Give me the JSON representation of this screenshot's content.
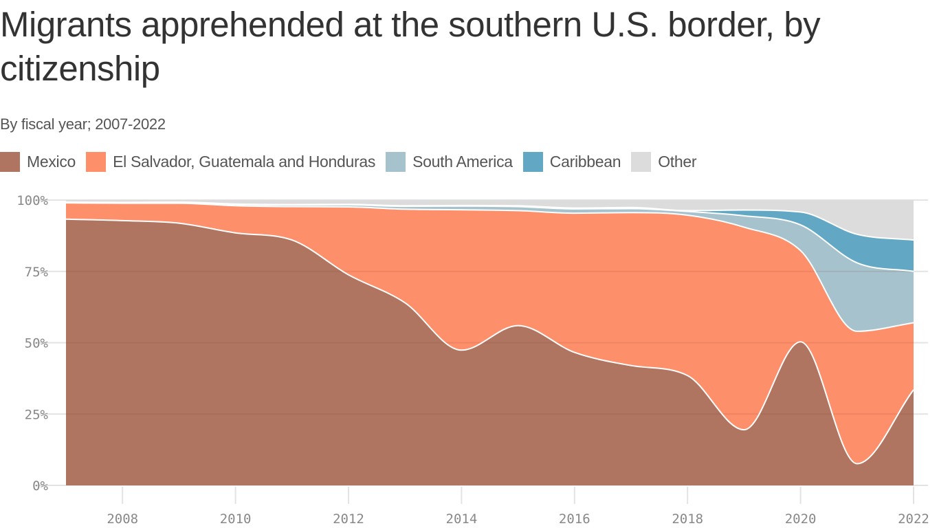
{
  "title": "Migrants apprehended at the southern U.S. border, by citizenship",
  "subtitle": "By fiscal year; 2007-2022",
  "legend": [
    {
      "label": "Mexico",
      "color": "#b07561"
    },
    {
      "label": "El Salvador, Guatemala and Honduras",
      "color": "#fe8f6b"
    },
    {
      "label": "South America",
      "color": "#a6c2cd"
    },
    {
      "label": "Caribbean",
      "color": "#62a8c4"
    },
    {
      "label": "Other",
      "color": "#dcdcdc"
    }
  ],
  "chart_data": {
    "type": "area",
    "stacked": true,
    "normalized": true,
    "title": "Migrants apprehended at the southern U.S. border, by citizenship",
    "subtitle": "By fiscal year; 2007-2022",
    "xlabel": "",
    "ylabel": "",
    "x": [
      2007,
      2008,
      2009,
      2010,
      2011,
      2012,
      2013,
      2014,
      2015,
      2016,
      2017,
      2018,
      2019,
      2020,
      2021,
      2022
    ],
    "x_ticks": [
      "2008",
      "2010",
      "2012",
      "2014",
      "2016",
      "2018",
      "2020",
      "2022"
    ],
    "y_ticks": [
      "0%",
      "25%",
      "50%",
      "75%",
      "100%"
    ],
    "ylim": [
      0,
      100
    ],
    "grid": true,
    "legend_position": "top-left",
    "series": [
      {
        "name": "Mexico",
        "color": "#b07561",
        "values": [
          93.3,
          92.8,
          91.9,
          88.5,
          86.0,
          73.8,
          64.0,
          47.4,
          56.0,
          46.6,
          42.0,
          38.5,
          19.5,
          50.3,
          7.6,
          33.5
        ]
      },
      {
        "name": "El Salvador, Guatemala and Honduras",
        "color": "#fe8f6b",
        "values": [
          5.7,
          6.1,
          7.0,
          9.5,
          11.7,
          23.8,
          32.8,
          49.2,
          40.3,
          48.8,
          53.6,
          56.2,
          71.0,
          32.0,
          46.4,
          23.5
        ]
      },
      {
        "name": "South America",
        "color": "#a6c2cd",
        "values": [
          0.2,
          0.2,
          0.3,
          0.5,
          0.6,
          0.7,
          1.0,
          1.3,
          1.4,
          1.5,
          1.4,
          1.3,
          4.0,
          9.0,
          24.0,
          18.0
        ]
      },
      {
        "name": "Caribbean",
        "color": "#62a8c4",
        "values": [
          0.1,
          0.1,
          0.1,
          0.1,
          0.1,
          0.2,
          0.2,
          0.2,
          0.3,
          0.3,
          0.4,
          0.3,
          2.0,
          4.5,
          10.0,
          11.0
        ]
      },
      {
        "name": "Other",
        "color": "#dcdcdc",
        "values": [
          0.7,
          0.8,
          0.7,
          1.4,
          1.6,
          1.5,
          2.0,
          1.9,
          2.0,
          2.8,
          2.6,
          3.7,
          3.5,
          4.2,
          12.0,
          14.0
        ]
      }
    ]
  }
}
